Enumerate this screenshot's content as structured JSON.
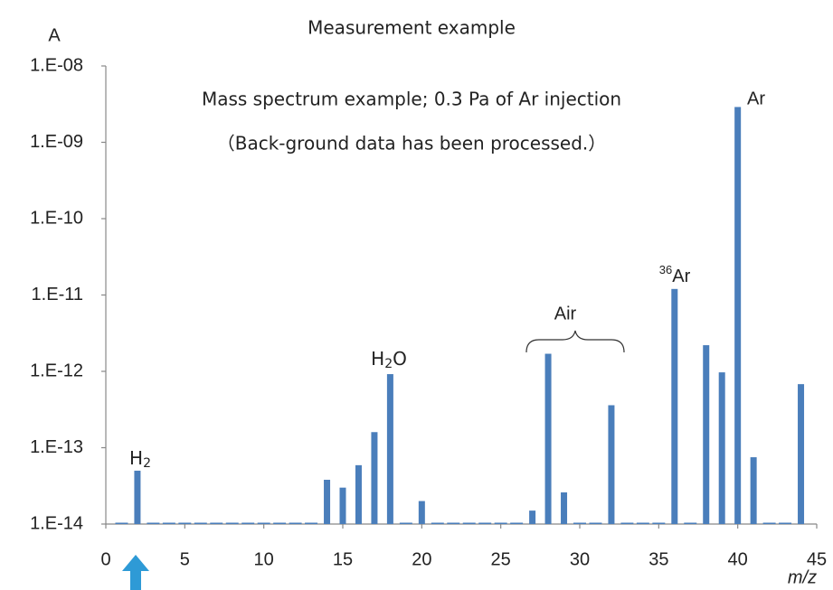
{
  "chart_data": {
    "type": "bar",
    "title": "Measurement example",
    "y_label": "A",
    "x_label": "m/z",
    "annotations": [
      "Mass spectrum example; 0.3 Pa of Ar injection",
      "（Back-ground data has been processed.）"
    ],
    "peak_labels": [
      [
        "H",
        "2"
      ],
      [
        "H",
        "2",
        "O"
      ],
      [
        "Air"
      ],
      [
        "36",
        "Ar"
      ],
      [
        "Ar"
      ]
    ],
    "log_y": true,
    "color": "#4a7ebb",
    "x": [
      1,
      2,
      3,
      4,
      5,
      6,
      7,
      8,
      9,
      10,
      11,
      12,
      13,
      14,
      15,
      16,
      17,
      18,
      19,
      20,
      21,
      22,
      23,
      24,
      25,
      26,
      27,
      28,
      29,
      30,
      31,
      32,
      33,
      34,
      35,
      36,
      37,
      38,
      39,
      40,
      41,
      42,
      43,
      44
    ],
    "values": [
      1e-14,
      5e-14,
      1e-14,
      1e-14,
      1e-14,
      1e-14,
      1e-14,
      1e-14,
      1e-14,
      1e-14,
      1e-14,
      1e-14,
      1e-14,
      3.8e-14,
      3e-14,
      5.9e-14,
      1.6e-13,
      9.2e-13,
      1e-14,
      2e-14,
      1e-14,
      1e-14,
      1e-14,
      1e-14,
      1e-14,
      1e-14,
      1.5e-14,
      1.7e-12,
      2.6e-14,
      1e-14,
      1e-14,
      3.6e-13,
      1e-14,
      1e-14,
      1e-14,
      1.2e-11,
      1e-14,
      2.2e-12,
      9.7e-13,
      2.9e-09,
      7.5e-14,
      1e-14,
      1e-14,
      6.8e-13
    ],
    "xlim": [
      0,
      45
    ],
    "xticks": [
      0,
      5,
      10,
      15,
      20,
      25,
      30,
      35,
      40,
      45
    ],
    "ylim": [
      1e-14,
      1e-08
    ],
    "yticks": [
      {
        "value": 1e-14,
        "label": "1.E-14"
      },
      {
        "value": 1e-13,
        "label": "1.E-13"
      },
      {
        "value": 1e-12,
        "label": "1.E-12"
      },
      {
        "value": 1e-11,
        "label": "1.E-11"
      },
      {
        "value": 1e-10,
        "label": "1.E-10"
      },
      {
        "value": 1e-09,
        "label": "1.E-09"
      },
      {
        "value": 1e-08,
        "label": "1.E-08"
      }
    ]
  }
}
